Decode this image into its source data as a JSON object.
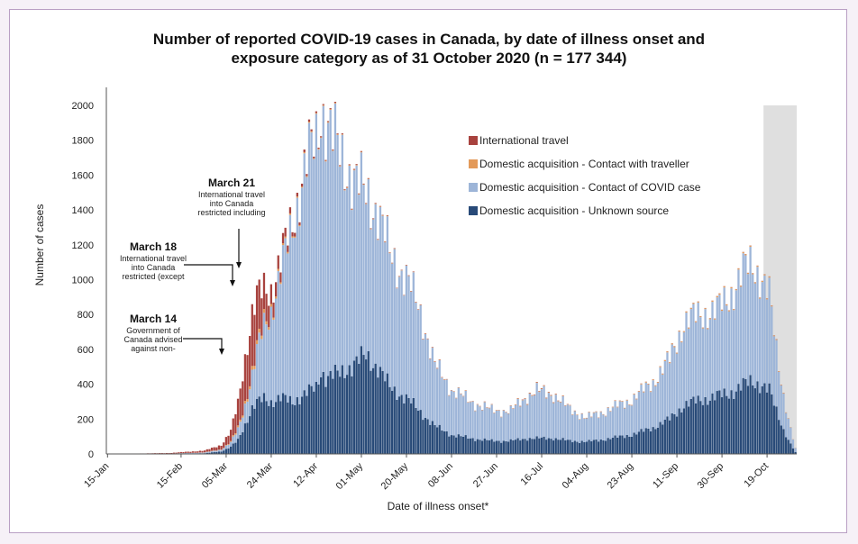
{
  "chart_data": {
    "type": "bar",
    "stacked": true,
    "title": "Number of reported COVID-19 cases in Canada, by date of illness onset and",
    "subtitle": "exposure category as of 31 October 2020 (n = 177 344)",
    "xlabel": "Date of illness onset*",
    "ylabel": "Number of cases",
    "ylim": [
      0,
      2000
    ],
    "yticks": [
      0,
      200,
      400,
      600,
      800,
      1000,
      1200,
      1400,
      1600,
      1800,
      2000
    ],
    "grid": false,
    "legend_position": "upper-right",
    "start_date": "2020-01-15",
    "end_date": "2020-10-31",
    "x_tick_labels": [
      "15-Jan",
      "15-Feb",
      "05-Mar",
      "24-Mar",
      "12-Apr",
      "01-May",
      "20-May",
      "08-Jun",
      "27-Jun",
      "16-Jul",
      "04-Aug",
      "23-Aug",
      "11-Sep",
      "30-Sep",
      "19-Oct"
    ],
    "x_tick_dates": [
      "2020-01-15",
      "2020-02-15",
      "2020-03-05",
      "2020-03-24",
      "2020-04-12",
      "2020-05-01",
      "2020-05-20",
      "2020-06-08",
      "2020-06-27",
      "2020-07-16",
      "2020-08-04",
      "2020-08-23",
      "2020-09-11",
      "2020-09-30",
      "2020-10-19"
    ],
    "shaded_period": {
      "start": "2020-10-18",
      "end": "2020-10-31"
    },
    "series": [
      {
        "name": "International travel",
        "color": "#a8423e"
      },
      {
        "name": "Domestic acquisition - Contact with traveller",
        "color": "#e39a5a"
      },
      {
        "name": "Domestic acquisition - Contact of COVID case",
        "color": "#9db5d8"
      },
      {
        "name": "Domestic acquisition - Unknown source",
        "color": "#284a78"
      }
    ],
    "legend_order": [
      0,
      1,
      2,
      3
    ],
    "keypoints": [
      {
        "date": "2020-01-15",
        "travel": 0,
        "trav_contact": 0,
        "covid_contact": 0,
        "unknown": 0
      },
      {
        "date": "2020-02-10",
        "travel": 3,
        "trav_contact": 0,
        "covid_contact": 1,
        "unknown": 1
      },
      {
        "date": "2020-02-25",
        "travel": 10,
        "trav_contact": 1,
        "covid_contact": 4,
        "unknown": 4
      },
      {
        "date": "2020-03-03",
        "travel": 25,
        "trav_contact": 2,
        "covid_contact": 10,
        "unknown": 15
      },
      {
        "date": "2020-03-07",
        "travel": 60,
        "trav_contact": 5,
        "covid_contact": 25,
        "unknown": 40
      },
      {
        "date": "2020-03-10",
        "travel": 140,
        "trav_contact": 10,
        "covid_contact": 60,
        "unknown": 80
      },
      {
        "date": "2020-03-13",
        "travel": 260,
        "trav_contact": 15,
        "covid_contact": 110,
        "unknown": 170
      },
      {
        "date": "2020-03-16",
        "travel": 330,
        "trav_contact": 20,
        "covid_contact": 190,
        "unknown": 260
      },
      {
        "date": "2020-03-18",
        "travel": 290,
        "trav_contact": 20,
        "covid_contact": 290,
        "unknown": 290
      },
      {
        "date": "2020-03-21",
        "travel": 190,
        "trav_contact": 20,
        "covid_contact": 420,
        "unknown": 320
      },
      {
        "date": "2020-03-24",
        "travel": 110,
        "trav_contact": 15,
        "covid_contact": 520,
        "unknown": 300
      },
      {
        "date": "2020-03-28",
        "travel": 60,
        "trav_contact": 10,
        "covid_contact": 710,
        "unknown": 320
      },
      {
        "date": "2020-04-02",
        "travel": 25,
        "trav_contact": 8,
        "covid_contact": 1010,
        "unknown": 300
      },
      {
        "date": "2020-04-08",
        "travel": 12,
        "trav_contact": 6,
        "covid_contact": 1320,
        "unknown": 350
      },
      {
        "date": "2020-04-12",
        "travel": 8,
        "trav_contact": 5,
        "covid_contact": 1410,
        "unknown": 380
      },
      {
        "date": "2020-04-14",
        "travel": 6,
        "trav_contact": 5,
        "covid_contact": 1500,
        "unknown": 480
      },
      {
        "date": "2020-04-16",
        "travel": 5,
        "trav_contact": 5,
        "covid_contact": 1480,
        "unknown": 440
      },
      {
        "date": "2020-04-22",
        "travel": 4,
        "trav_contact": 4,
        "covid_contact": 1250,
        "unknown": 460
      },
      {
        "date": "2020-04-28",
        "travel": 4,
        "trav_contact": 4,
        "covid_contact": 1060,
        "unknown": 520
      },
      {
        "date": "2020-05-03",
        "travel": 3,
        "trav_contact": 3,
        "covid_contact": 920,
        "unknown": 560
      },
      {
        "date": "2020-05-08",
        "travel": 3,
        "trav_contact": 3,
        "covid_contact": 900,
        "unknown": 500
      },
      {
        "date": "2020-05-13",
        "travel": 2,
        "trav_contact": 3,
        "covid_contact": 760,
        "unknown": 380
      },
      {
        "date": "2020-05-20",
        "travel": 2,
        "trav_contact": 2,
        "covid_contact": 690,
        "unknown": 320
      },
      {
        "date": "2020-05-26",
        "travel": 2,
        "trav_contact": 2,
        "covid_contact": 570,
        "unknown": 240
      },
      {
        "date": "2020-06-01",
        "travel": 2,
        "trav_contact": 2,
        "covid_contact": 350,
        "unknown": 160
      },
      {
        "date": "2020-06-08",
        "travel": 1,
        "trav_contact": 2,
        "covid_contact": 260,
        "unknown": 110
      },
      {
        "date": "2020-06-16",
        "travel": 1,
        "trav_contact": 2,
        "covid_contact": 210,
        "unknown": 90
      },
      {
        "date": "2020-06-25",
        "travel": 1,
        "trav_contact": 2,
        "covid_contact": 175,
        "unknown": 75
      },
      {
        "date": "2020-07-03",
        "travel": 1,
        "trav_contact": 2,
        "covid_contact": 170,
        "unknown": 75
      },
      {
        "date": "2020-07-10",
        "travel": 2,
        "trav_contact": 3,
        "covid_contact": 240,
        "unknown": 90
      },
      {
        "date": "2020-07-14",
        "travel": 2,
        "trav_contact": 3,
        "covid_contact": 270,
        "unknown": 90
      },
      {
        "date": "2020-07-21",
        "travel": 2,
        "trav_contact": 3,
        "covid_contact": 250,
        "unknown": 90
      },
      {
        "date": "2020-07-28",
        "travel": 1,
        "trav_contact": 2,
        "covid_contact": 180,
        "unknown": 75
      },
      {
        "date": "2020-08-04",
        "travel": 1,
        "trav_contact": 2,
        "covid_contact": 135,
        "unknown": 70
      },
      {
        "date": "2020-08-12",
        "travel": 1,
        "trav_contact": 2,
        "covid_contact": 160,
        "unknown": 85
      },
      {
        "date": "2020-08-23",
        "travel": 1,
        "trav_contact": 3,
        "covid_contact": 200,
        "unknown": 110
      },
      {
        "date": "2020-09-01",
        "travel": 1,
        "trav_contact": 4,
        "covid_contact": 260,
        "unknown": 150
      },
      {
        "date": "2020-09-08",
        "travel": 1,
        "trav_contact": 5,
        "covid_contact": 340,
        "unknown": 200
      },
      {
        "date": "2020-09-14",
        "travel": 1,
        "trav_contact": 5,
        "covid_contact": 470,
        "unknown": 280
      },
      {
        "date": "2020-09-21",
        "travel": 1,
        "trav_contact": 5,
        "covid_contact": 490,
        "unknown": 310
      },
      {
        "date": "2020-09-28",
        "travel": 1,
        "trav_contact": 6,
        "covid_contact": 490,
        "unknown": 330
      },
      {
        "date": "2020-10-05",
        "travel": 1,
        "trav_contact": 6,
        "covid_contact": 580,
        "unknown": 360
      },
      {
        "date": "2020-10-10",
        "travel": 1,
        "trav_contact": 6,
        "covid_contact": 660,
        "unknown": 400
      },
      {
        "date": "2020-10-13",
        "travel": 1,
        "trav_contact": 6,
        "covid_contact": 680,
        "unknown": 420
      },
      {
        "date": "2020-10-16",
        "travel": 1,
        "trav_contact": 6,
        "covid_contact": 620,
        "unknown": 400
      },
      {
        "date": "2020-10-20",
        "travel": 1,
        "trav_contact": 5,
        "covid_contact": 540,
        "unknown": 360
      },
      {
        "date": "2020-10-23",
        "travel": 1,
        "trav_contact": 4,
        "covid_contact": 350,
        "unknown": 250
      },
      {
        "date": "2020-10-26",
        "travel": 1,
        "trav_contact": 3,
        "covid_contact": 200,
        "unknown": 140
      },
      {
        "date": "2020-10-28",
        "travel": 0,
        "trav_contact": 2,
        "covid_contact": 120,
        "unknown": 80
      },
      {
        "date": "2020-10-31",
        "travel": 0,
        "trav_contact": 1,
        "covid_contact": 20,
        "unknown": 10
      }
    ],
    "annotations": [
      {
        "heading": "March 14",
        "lines": [
          "Government of",
          "Canada advised",
          "against non-"
        ],
        "date": "2020-03-14"
      },
      {
        "heading": "March 18",
        "lines": [
          "International travel",
          "into Canada",
          "restricted (except"
        ],
        "date": "2020-03-18"
      },
      {
        "heading": "March 21",
        "lines": [
          "International travel",
          "into Canada",
          "restricted including"
        ],
        "date": "2020-03-21"
      }
    ]
  }
}
